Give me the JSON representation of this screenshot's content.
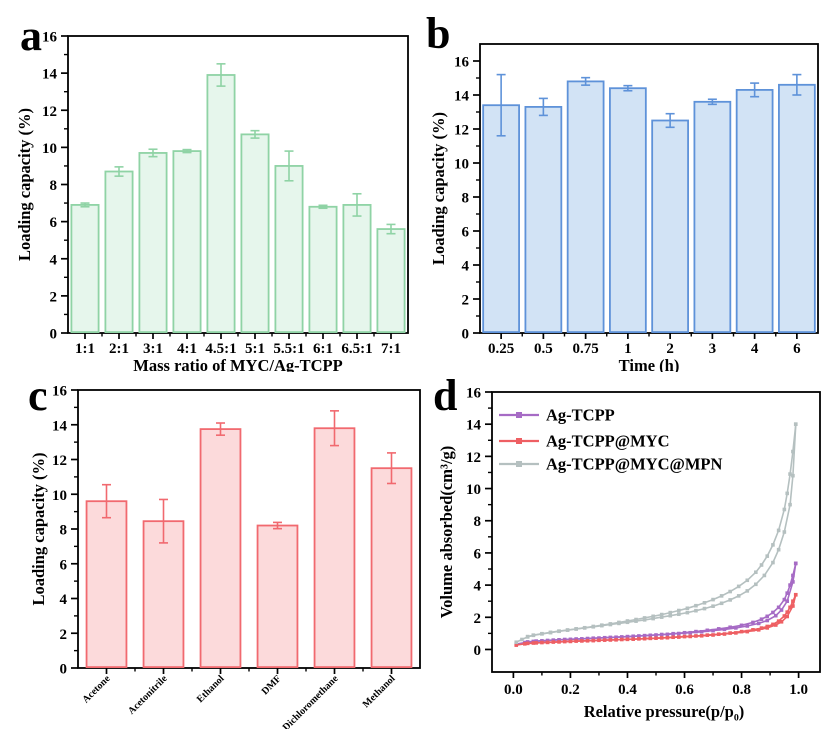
{
  "figure": {
    "background": "#ffffff",
    "text_color": "#000000",
    "axis_color": "#000000"
  },
  "chart_data": [
    {
      "id": "a",
      "panel_label": "a",
      "type": "bar",
      "categories": [
        "1:1",
        "2:1",
        "3:1",
        "4:1",
        "4.5:1",
        "5:1",
        "5.5:1",
        "6:1",
        "6.5:1",
        "7:1"
      ],
      "values": [
        6.9,
        8.7,
        9.7,
        9.8,
        13.9,
        10.7,
        9.0,
        6.8,
        6.9,
        5.6
      ],
      "errors": [
        0.1,
        0.25,
        0.2,
        0.08,
        0.6,
        0.2,
        0.8,
        0.08,
        0.6,
        0.25
      ],
      "xlabel": "Mass ratio of MYC/Ag-TCPP",
      "ylabel": "Loading capacity (%)",
      "ylim": [
        0,
        16
      ],
      "ytick_step": 2,
      "ytick_max": 16,
      "grid": false,
      "bar_fill": "#e6f6ec",
      "bar_stroke": "#8fd3a5",
      "error_color": "#8fd3a5"
    },
    {
      "id": "b",
      "panel_label": "b",
      "type": "bar",
      "categories": [
        "0.25",
        "0.5",
        "0.75",
        "1",
        "2",
        "3",
        "4",
        "6"
      ],
      "values": [
        13.4,
        13.3,
        14.8,
        14.4,
        12.5,
        13.6,
        14.3,
        14.6
      ],
      "errors": [
        1.8,
        0.5,
        0.22,
        0.15,
        0.4,
        0.15,
        0.4,
        0.6
      ],
      "xlabel": "Time (h)",
      "ylabel": "Loading capacity (%)",
      "ylim": [
        0,
        17
      ],
      "ytick_step": 2,
      "ytick_max": 16,
      "grid": false,
      "bar_fill": "#d2e3f5",
      "bar_stroke": "#5e92d9",
      "error_color": "#5e92d9"
    },
    {
      "id": "c",
      "panel_label": "c",
      "type": "bar",
      "categories": [
        "Acetone",
        "Acetonitrile",
        "Ethanol",
        "DMF",
        "Dichloromethane",
        "Methanol"
      ],
      "values": [
        9.6,
        8.45,
        13.75,
        8.2,
        13.8,
        11.5
      ],
      "errors": [
        0.95,
        1.25,
        0.35,
        0.18,
        1.0,
        0.88
      ],
      "xlabel": "",
      "ylabel": "Loading capacity (%)",
      "ylim": [
        0,
        16
      ],
      "ytick_step": 2,
      "ytick_max": 16,
      "grid": false,
      "rotate_labels": 45,
      "bar_fill": "#fcdadb",
      "bar_stroke": "#f1696f",
      "error_color": "#f1696f"
    },
    {
      "id": "d",
      "panel_label": "d",
      "type": "line",
      "xlabel": "Relative pressure(p/p₀)",
      "ylabel": "Volume absorbed(cm³/g)",
      "xlim": [
        -0.075,
        1.075
      ],
      "ylim": [
        -1.4,
        16
      ],
      "xticks": [
        0.0,
        0.2,
        0.4,
        0.6,
        0.8,
        1.0
      ],
      "xtick_labels": [
        "0.0",
        "0.2",
        "0.4",
        "0.6",
        "0.8",
        "1.0"
      ],
      "ytick_step": 2,
      "ytick_max": 16,
      "grid": false,
      "legend_position": "top-left",
      "legend": [
        "Ag-TCPP",
        "Ag-TCPP@MYC",
        "Ag-TCPP@MYC@MPN"
      ],
      "series": [
        {
          "name": "Ag-TCPP",
          "color": "#a66bc5",
          "adsorption": [
            [
              0.01,
              0.33
            ],
            [
              0.04,
              0.43
            ],
            [
              0.07,
              0.5
            ],
            [
              0.1,
              0.54
            ],
            [
              0.14,
              0.58
            ],
            [
              0.18,
              0.62
            ],
            [
              0.22,
              0.65
            ],
            [
              0.26,
              0.68
            ],
            [
              0.3,
              0.71
            ],
            [
              0.34,
              0.75
            ],
            [
              0.38,
              0.78
            ],
            [
              0.42,
              0.82
            ],
            [
              0.46,
              0.86
            ],
            [
              0.5,
              0.9
            ],
            [
              0.54,
              0.94
            ],
            [
              0.58,
              0.99
            ],
            [
              0.62,
              1.04
            ],
            [
              0.66,
              1.1
            ],
            [
              0.7,
              1.17
            ],
            [
              0.74,
              1.25
            ],
            [
              0.78,
              1.34
            ],
            [
              0.82,
              1.46
            ],
            [
              0.86,
              1.62
            ],
            [
              0.89,
              1.8
            ],
            [
              0.92,
              2.1
            ],
            [
              0.94,
              2.45
            ],
            [
              0.96,
              3.0
            ],
            [
              0.98,
              4.2
            ],
            [
              0.99,
              5.35
            ]
          ],
          "desorption": [
            [
              0.99,
              5.35
            ],
            [
              0.98,
              4.6
            ],
            [
              0.97,
              4.0
            ],
            [
              0.96,
              3.5
            ],
            [
              0.95,
              3.1
            ],
            [
              0.93,
              2.62
            ],
            [
              0.91,
              2.3
            ],
            [
              0.89,
              2.06
            ],
            [
              0.87,
              1.88
            ],
            [
              0.84,
              1.68
            ],
            [
              0.8,
              1.5
            ],
            [
              0.76,
              1.38
            ],
            [
              0.72,
              1.28
            ],
            [
              0.68,
              1.19
            ],
            [
              0.64,
              1.11
            ],
            [
              0.6,
              1.04
            ],
            [
              0.56,
              0.98
            ],
            [
              0.52,
              0.93
            ],
            [
              0.48,
              0.88
            ],
            [
              0.44,
              0.84
            ],
            [
              0.4,
              0.8
            ],
            [
              0.36,
              0.76
            ],
            [
              0.32,
              0.73
            ],
            [
              0.28,
              0.7
            ],
            [
              0.24,
              0.66
            ],
            [
              0.2,
              0.63
            ],
            [
              0.16,
              0.6
            ],
            [
              0.12,
              0.56
            ],
            [
              0.08,
              0.52
            ],
            [
              0.05,
              0.47
            ]
          ]
        },
        {
          "name": "Ag-TCPP@MYC",
          "color": "#ee5f63",
          "adsorption": [
            [
              0.01,
              0.27
            ],
            [
              0.04,
              0.35
            ],
            [
              0.07,
              0.4
            ],
            [
              0.1,
              0.43
            ],
            [
              0.14,
              0.46
            ],
            [
              0.18,
              0.49
            ],
            [
              0.22,
              0.52
            ],
            [
              0.26,
              0.54
            ],
            [
              0.3,
              0.57
            ],
            [
              0.34,
              0.59
            ],
            [
              0.38,
              0.62
            ],
            [
              0.42,
              0.64
            ],
            [
              0.46,
              0.67
            ],
            [
              0.5,
              0.7
            ],
            [
              0.54,
              0.73
            ],
            [
              0.58,
              0.77
            ],
            [
              0.62,
              0.81
            ],
            [
              0.66,
              0.85
            ],
            [
              0.7,
              0.9
            ],
            [
              0.74,
              0.96
            ],
            [
              0.78,
              1.03
            ],
            [
              0.82,
              1.11
            ],
            [
              0.86,
              1.22
            ],
            [
              0.89,
              1.34
            ],
            [
              0.92,
              1.52
            ],
            [
              0.94,
              1.72
            ],
            [
              0.96,
              2.05
            ],
            [
              0.98,
              2.7
            ],
            [
              0.99,
              3.4
            ]
          ],
          "desorption": [
            [
              0.99,
              3.4
            ],
            [
              0.98,
              3.0
            ],
            [
              0.97,
              2.62
            ],
            [
              0.96,
              2.32
            ],
            [
              0.95,
              2.08
            ],
            [
              0.93,
              1.76
            ],
            [
              0.91,
              1.56
            ],
            [
              0.89,
              1.43
            ],
            [
              0.87,
              1.33
            ],
            [
              0.84,
              1.22
            ],
            [
              0.8,
              1.11
            ],
            [
              0.76,
              1.02
            ],
            [
              0.72,
              0.95
            ],
            [
              0.68,
              0.89
            ],
            [
              0.64,
              0.84
            ],
            [
              0.6,
              0.8
            ],
            [
              0.56,
              0.76
            ],
            [
              0.52,
              0.72
            ],
            [
              0.48,
              0.69
            ],
            [
              0.44,
              0.66
            ],
            [
              0.4,
              0.63
            ],
            [
              0.36,
              0.6
            ],
            [
              0.32,
              0.58
            ],
            [
              0.28,
              0.55
            ],
            [
              0.24,
              0.53
            ],
            [
              0.2,
              0.5
            ],
            [
              0.16,
              0.47
            ],
            [
              0.12,
              0.44
            ],
            [
              0.08,
              0.41
            ],
            [
              0.05,
              0.38
            ]
          ]
        },
        {
          "name": "Ag-TCPP@MYC@MPN",
          "color": "#b5c0c0",
          "adsorption": [
            [
              0.01,
              0.45
            ],
            [
              0.03,
              0.62
            ],
            [
              0.05,
              0.78
            ],
            [
              0.07,
              0.88
            ],
            [
              0.1,
              0.97
            ],
            [
              0.13,
              1.05
            ],
            [
              0.16,
              1.13
            ],
            [
              0.19,
              1.2
            ],
            [
              0.22,
              1.27
            ],
            [
              0.25,
              1.34
            ],
            [
              0.28,
              1.41
            ],
            [
              0.31,
              1.48
            ],
            [
              0.34,
              1.55
            ],
            [
              0.37,
              1.62
            ],
            [
              0.4,
              1.69
            ],
            [
              0.43,
              1.76
            ],
            [
              0.46,
              1.84
            ],
            [
              0.49,
              1.92
            ],
            [
              0.52,
              2.01
            ],
            [
              0.55,
              2.1
            ],
            [
              0.58,
              2.19
            ],
            [
              0.61,
              2.29
            ],
            [
              0.64,
              2.41
            ],
            [
              0.67,
              2.54
            ],
            [
              0.7,
              2.69
            ],
            [
              0.73,
              2.87
            ],
            [
              0.76,
              3.08
            ],
            [
              0.79,
              3.33
            ],
            [
              0.82,
              3.64
            ],
            [
              0.85,
              4.05
            ],
            [
              0.88,
              4.6
            ],
            [
              0.91,
              5.4
            ],
            [
              0.93,
              6.2
            ],
            [
              0.95,
              7.3
            ],
            [
              0.97,
              9.0
            ],
            [
              0.98,
              10.8
            ],
            [
              0.99,
              14.0
            ]
          ],
          "desorption": [
            [
              0.99,
              14.0
            ],
            [
              0.98,
              12.3
            ],
            [
              0.97,
              10.9
            ],
            [
              0.96,
              9.7
            ],
            [
              0.95,
              8.7
            ],
            [
              0.93,
              7.4
            ],
            [
              0.91,
              6.5
            ],
            [
              0.89,
              5.8
            ],
            [
              0.87,
              5.25
            ],
            [
              0.85,
              4.8
            ],
            [
              0.82,
              4.3
            ],
            [
              0.79,
              3.92
            ],
            [
              0.76,
              3.6
            ],
            [
              0.73,
              3.33
            ],
            [
              0.7,
              3.1
            ],
            [
              0.67,
              2.9
            ],
            [
              0.64,
              2.72
            ],
            [
              0.61,
              2.56
            ],
            [
              0.58,
              2.42
            ],
            [
              0.55,
              2.29
            ],
            [
              0.52,
              2.17
            ],
            [
              0.49,
              2.06
            ],
            [
              0.46,
              1.96
            ],
            [
              0.43,
              1.86
            ],
            [
              0.4,
              1.77
            ],
            [
              0.37,
              1.68
            ],
            [
              0.34,
              1.59
            ],
            [
              0.31,
              1.51
            ],
            [
              0.28,
              1.43
            ],
            [
              0.25,
              1.35
            ],
            [
              0.22,
              1.28
            ],
            [
              0.19,
              1.21
            ],
            [
              0.16,
              1.14
            ],
            [
              0.13,
              1.06
            ],
            [
              0.1,
              0.98
            ],
            [
              0.07,
              0.89
            ],
            [
              0.05,
              0.8
            ]
          ]
        }
      ]
    }
  ]
}
